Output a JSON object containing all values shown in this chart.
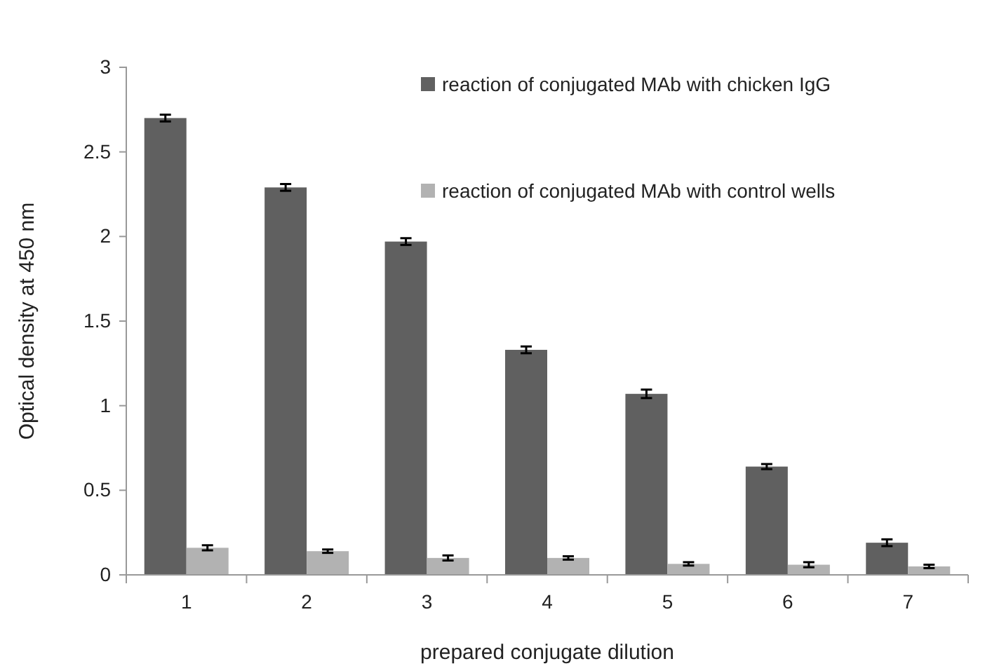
{
  "chart_data": {
    "type": "bar",
    "xlabel": "prepared conjugate dilution",
    "ylabel": "Optical density at 450 nm",
    "categories": [
      "1",
      "2",
      "3",
      "4",
      "5",
      "6",
      "7"
    ],
    "series": [
      {
        "name": "reaction of conjugated MAb with chicken IgG",
        "color": "#606060",
        "values": [
          2.7,
          2.29,
          1.97,
          1.33,
          1.07,
          0.64,
          0.19
        ],
        "errors": [
          0.02,
          0.02,
          0.02,
          0.02,
          0.025,
          0.015,
          0.02
        ]
      },
      {
        "name": "reaction of conjugated MAb with control wells",
        "color": "#b2b2b2",
        "values": [
          0.16,
          0.14,
          0.1,
          0.1,
          0.065,
          0.06,
          0.05
        ],
        "errors": [
          0.015,
          0.01,
          0.015,
          0.01,
          0.01,
          0.015,
          0.01
        ]
      }
    ],
    "ylim": [
      0,
      3
    ],
    "yticks": [
      0,
      0.5,
      1,
      1.5,
      2,
      2.5,
      3
    ],
    "grid": false,
    "legend": "top right"
  }
}
